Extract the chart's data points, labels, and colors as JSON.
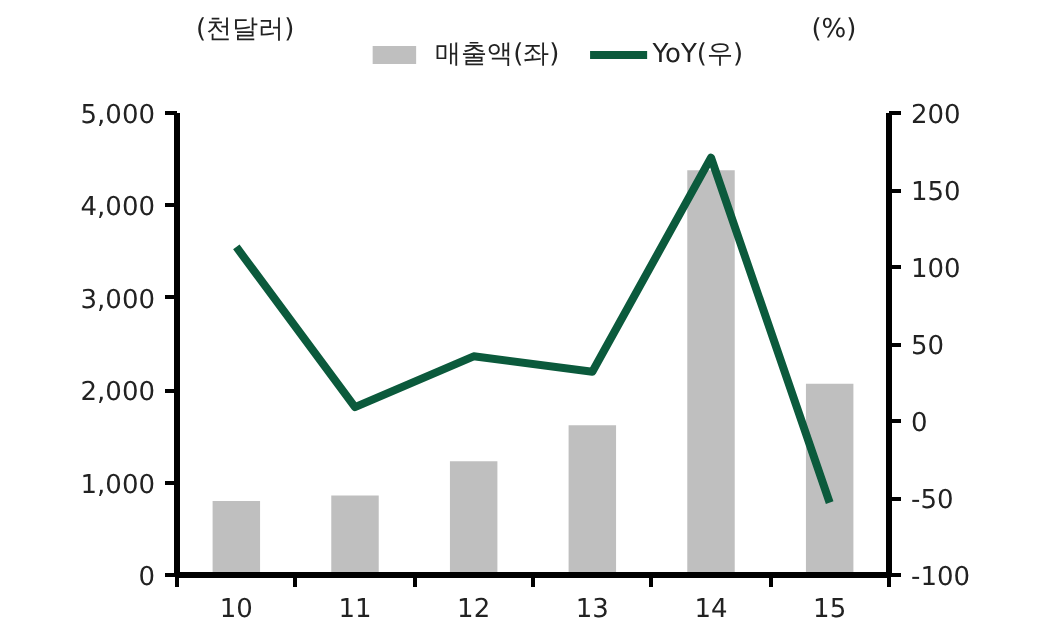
{
  "chart_data": {
    "type": "bar",
    "categories": [
      "10",
      "11",
      "12",
      "13",
      "14",
      "15"
    ],
    "ylabel": "(천달러)",
    "y2label": "(%)",
    "series": [
      {
        "name": "매출액(좌)",
        "color": "#bfbfbf",
        "values": [
          800,
          860,
          1230,
          1620,
          4380,
          2070
        ]
      },
      {
        "name": "YoY(우)",
        "type": "line",
        "axis": "y2",
        "color": "#0b5a3c",
        "values": [
          113,
          9,
          42,
          32,
          171,
          -53
        ]
      }
    ],
    "ylim": [
      0,
      5000
    ],
    "yticks": [
      {
        "value": 0,
        "label": "0"
      },
      {
        "value": 1000,
        "label": "1,000"
      },
      {
        "value": 2000,
        "label": "2,000"
      },
      {
        "value": 3000,
        "label": "3,000"
      },
      {
        "value": 4000,
        "label": "4,000"
      },
      {
        "value": 5000,
        "label": "5,000"
      }
    ],
    "y2lim": [
      -100,
      200
    ],
    "y2ticks": [
      -100,
      -50,
      0,
      50,
      100,
      150,
      200
    ],
    "legend": "top",
    "grid": false,
    "marker": "none",
    "line_style": "solid"
  }
}
